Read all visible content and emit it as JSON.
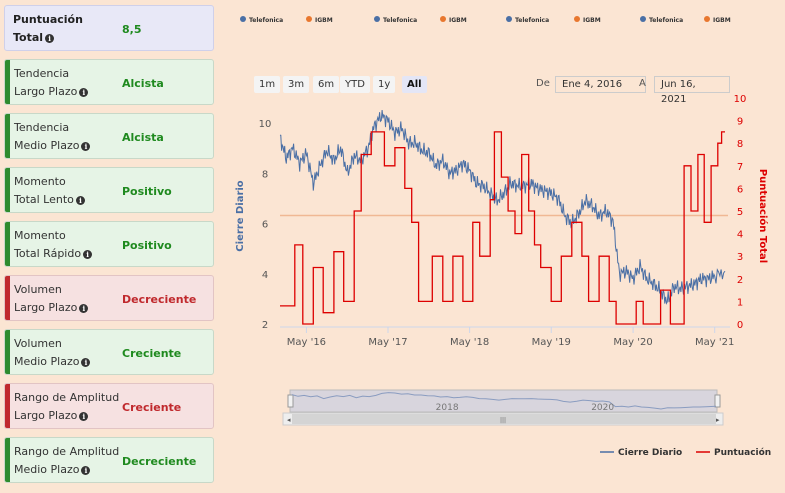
{
  "cards": [
    {
      "line1": "Puntuación",
      "line2": "Total",
      "value": "8,5",
      "kind": "purple"
    },
    {
      "line1": "Tendencia",
      "line2": "Largo Plazo",
      "value": "Alcista",
      "kind": "green"
    },
    {
      "line1": "Tendencia",
      "line2": "Medio Plazo",
      "value": "Alcista",
      "kind": "green"
    },
    {
      "line1": "Momento",
      "line2": "Total Lento",
      "value": "Positivo",
      "kind": "green"
    },
    {
      "line1": "Momento",
      "line2": "Total Rápido",
      "value": "Positivo",
      "kind": "green"
    },
    {
      "line1": "Volumen",
      "line2": "Largo Plazo",
      "value": "Decreciente",
      "kind": "red"
    },
    {
      "line1": "Volumen",
      "line2": "Medio Plazo",
      "value": "Creciente",
      "kind": "green"
    },
    {
      "line1": "Rango de Amplitud",
      "line2": "Largo Plazo",
      "value": "Creciente",
      "kind": "red"
    },
    {
      "line1": "Rango de Amplitud",
      "line2": "Medio Plazo",
      "value": "Decreciente",
      "kind": "green"
    }
  ],
  "top_legend": [
    {
      "name": "Telefonica",
      "color": "#4a6fa5"
    },
    {
      "name": "IGBM",
      "color": "#e8772e"
    },
    {
      "name": "Telefonica",
      "color": "#4a6fa5"
    },
    {
      "name": "IGBM",
      "color": "#e8772e"
    },
    {
      "name": "Telefonica",
      "color": "#4a6fa5"
    },
    {
      "name": "IGBM",
      "color": "#e8772e"
    },
    {
      "name": "Telefonica",
      "color": "#4a6fa5"
    },
    {
      "name": "IGBM",
      "color": "#e8772e"
    }
  ],
  "range_selector": {
    "buttons": [
      "1m",
      "3m",
      "6m",
      "YTD",
      "1y",
      "All"
    ],
    "active": "All",
    "from_label": "De",
    "from_date": "Ene 4, 2016",
    "to_label": "A",
    "to_date": "Jun 16, 2021"
  },
  "navigator": {
    "labels": [
      "2018",
      "2020"
    ]
  },
  "chart_data": {
    "type": "line",
    "x_range": [
      "2016-01-04",
      "2021-06-16"
    ],
    "x_ticks": [
      "May '16",
      "May '17",
      "May '18",
      "May '19",
      "May '20",
      "May '21"
    ],
    "y_left": {
      "label": "Cierre Diario",
      "range": [
        2,
        10
      ],
      "ticks": [
        2,
        4,
        6,
        8,
        10
      ],
      "color": "#4a6fa5"
    },
    "y_right": {
      "label": "Puntuación Total",
      "range": [
        0,
        10
      ],
      "ticks": [
        0,
        1,
        2,
        3,
        4,
        5,
        6,
        7,
        8,
        9,
        10
      ],
      "color": "#dd0000"
    },
    "reference_line": {
      "axis": "right",
      "value": 4.8,
      "color": "#f0b894"
    },
    "legend": {
      "position": "bottom-right"
    },
    "series": [
      {
        "name": "Cierre Diario",
        "axis": "left",
        "color": "#4a6fa5",
        "points": [
          [
            "2016-01-04",
            9.4
          ],
          [
            "2016-02-01",
            8.6
          ],
          [
            "2016-03-01",
            9.0
          ],
          [
            "2016-04-01",
            8.4
          ],
          [
            "2016-05-01",
            8.8
          ],
          [
            "2016-06-01",
            7.6
          ],
          [
            "2016-07-01",
            8.3
          ],
          [
            "2016-08-01",
            8.9
          ],
          [
            "2016-09-01",
            8.5
          ],
          [
            "2016-10-01",
            9.0
          ],
          [
            "2016-11-01",
            8.0
          ],
          [
            "2016-12-01",
            8.7
          ],
          [
            "2017-01-01",
            8.5
          ],
          [
            "2017-02-01",
            9.0
          ],
          [
            "2017-03-01",
            9.9
          ],
          [
            "2017-04-01",
            10.3
          ],
          [
            "2017-05-01",
            10.1
          ],
          [
            "2017-06-01",
            9.6
          ],
          [
            "2017-07-01",
            9.8
          ],
          [
            "2017-08-01",
            9.2
          ],
          [
            "2017-09-01",
            9.2
          ],
          [
            "2017-10-01",
            8.9
          ],
          [
            "2017-11-01",
            8.8
          ],
          [
            "2017-12-01",
            8.3
          ],
          [
            "2018-01-01",
            8.5
          ],
          [
            "2018-02-01",
            8.0
          ],
          [
            "2018-03-01",
            8.1
          ],
          [
            "2018-04-01",
            8.4
          ],
          [
            "2018-05-01",
            8.1
          ],
          [
            "2018-06-01",
            7.6
          ],
          [
            "2018-07-01",
            7.5
          ],
          [
            "2018-08-01",
            7.2
          ],
          [
            "2018-09-01",
            6.9
          ],
          [
            "2018-10-01",
            7.2
          ],
          [
            "2018-11-01",
            7.6
          ],
          [
            "2018-12-01",
            7.5
          ],
          [
            "2019-01-01",
            7.5
          ],
          [
            "2019-02-01",
            7.6
          ],
          [
            "2019-03-01",
            7.4
          ],
          [
            "2019-04-01",
            7.3
          ],
          [
            "2019-05-01",
            7.2
          ],
          [
            "2019-06-01",
            7.0
          ],
          [
            "2019-07-01",
            6.3
          ],
          [
            "2019-08-01",
            6.0
          ],
          [
            "2019-09-01",
            6.4
          ],
          [
            "2019-10-01",
            6.9
          ],
          [
            "2019-11-01",
            6.7
          ],
          [
            "2019-12-01",
            6.3
          ],
          [
            "2020-01-01",
            6.5
          ],
          [
            "2020-02-01",
            6.1
          ],
          [
            "2020-03-01",
            4.0
          ],
          [
            "2020-04-01",
            4.1
          ],
          [
            "2020-05-01",
            3.8
          ],
          [
            "2020-06-01",
            4.3
          ],
          [
            "2020-07-01",
            3.8
          ],
          [
            "2020-08-01",
            3.6
          ],
          [
            "2020-09-01",
            3.3
          ],
          [
            "2020-10-01",
            2.9
          ],
          [
            "2020-11-01",
            3.5
          ],
          [
            "2020-12-01",
            3.4
          ],
          [
            "2021-01-01",
            3.5
          ],
          [
            "2021-02-01",
            3.6
          ],
          [
            "2021-03-01",
            3.8
          ],
          [
            "2021-04-01",
            3.8
          ],
          [
            "2021-05-01",
            3.9
          ],
          [
            "2021-06-16",
            4.1
          ]
        ]
      },
      {
        "name": "Puntuación",
        "axis": "right",
        "color": "#dd0000",
        "points": [
          [
            "2016-01-04",
            0.8
          ],
          [
            "2016-03-10",
            0.8
          ],
          [
            "2016-03-10",
            3.5
          ],
          [
            "2016-04-15",
            3.5
          ],
          [
            "2016-04-15",
            0.0
          ],
          [
            "2016-06-01",
            0.0
          ],
          [
            "2016-06-01",
            2.5
          ],
          [
            "2016-07-15",
            2.5
          ],
          [
            "2016-07-15",
            0.5
          ],
          [
            "2016-09-01",
            0.5
          ],
          [
            "2016-09-01",
            3.2
          ],
          [
            "2016-10-15",
            3.2
          ],
          [
            "2016-10-15",
            1.0
          ],
          [
            "2016-12-01",
            1.0
          ],
          [
            "2016-12-01",
            5.0
          ],
          [
            "2017-01-01",
            5.0
          ],
          [
            "2017-01-01",
            7.5
          ],
          [
            "2017-02-15",
            7.5
          ],
          [
            "2017-02-15",
            8.5
          ],
          [
            "2017-04-15",
            8.5
          ],
          [
            "2017-04-15",
            7.0
          ],
          [
            "2017-06-01",
            7.0
          ],
          [
            "2017-06-01",
            7.8
          ],
          [
            "2017-07-15",
            7.8
          ],
          [
            "2017-07-15",
            6.0
          ],
          [
            "2017-08-15",
            6.0
          ],
          [
            "2017-08-15",
            4.5
          ],
          [
            "2017-09-15",
            4.5
          ],
          [
            "2017-09-15",
            1.0
          ],
          [
            "2017-11-15",
            1.0
          ],
          [
            "2017-11-15",
            3.0
          ],
          [
            "2018-01-01",
            3.0
          ],
          [
            "2018-01-01",
            1.0
          ],
          [
            "2018-02-15",
            1.0
          ],
          [
            "2018-02-15",
            3.0
          ],
          [
            "2018-04-01",
            3.0
          ],
          [
            "2018-04-01",
            1.0
          ],
          [
            "2018-05-15",
            1.0
          ],
          [
            "2018-05-15",
            4.5
          ],
          [
            "2018-06-15",
            4.5
          ],
          [
            "2018-06-15",
            3.0
          ],
          [
            "2018-08-01",
            3.0
          ],
          [
            "2018-08-01",
            5.5
          ],
          [
            "2018-08-20",
            5.5
          ],
          [
            "2018-08-20",
            8.5
          ],
          [
            "2018-09-20",
            8.5
          ],
          [
            "2018-09-20",
            6.5
          ],
          [
            "2018-10-20",
            6.5
          ],
          [
            "2018-10-20",
            5.0
          ],
          [
            "2018-11-20",
            5.0
          ],
          [
            "2018-11-20",
            4.0
          ],
          [
            "2018-12-20",
            4.0
          ],
          [
            "2018-12-20",
            7.5
          ],
          [
            "2019-01-20",
            7.5
          ],
          [
            "2019-01-20",
            5.0
          ],
          [
            "2019-02-15",
            5.0
          ],
          [
            "2019-02-15",
            3.5
          ],
          [
            "2019-03-15",
            3.5
          ],
          [
            "2019-03-15",
            2.5
          ],
          [
            "2019-05-01",
            2.5
          ],
          [
            "2019-05-01",
            1.0
          ],
          [
            "2019-06-15",
            1.0
          ],
          [
            "2019-06-15",
            3.0
          ],
          [
            "2019-08-01",
            3.0
          ],
          [
            "2019-08-01",
            4.5
          ],
          [
            "2019-09-15",
            4.5
          ],
          [
            "2019-09-15",
            3.0
          ],
          [
            "2019-10-15",
            3.0
          ],
          [
            "2019-10-15",
            1.0
          ],
          [
            "2019-12-01",
            1.0
          ],
          [
            "2019-12-01",
            3.0
          ],
          [
            "2020-01-15",
            3.0
          ],
          [
            "2020-01-15",
            1.0
          ],
          [
            "2020-02-15",
            1.0
          ],
          [
            "2020-02-15",
            0.0
          ],
          [
            "2020-05-15",
            0.0
          ],
          [
            "2020-05-15",
            1.0
          ],
          [
            "2020-06-15",
            1.0
          ],
          [
            "2020-06-15",
            0.0
          ],
          [
            "2020-09-01",
            0.0
          ],
          [
            "2020-09-01",
            1.5
          ],
          [
            "2020-10-15",
            1.5
          ],
          [
            "2020-10-15",
            0.0
          ],
          [
            "2020-12-15",
            0.0
          ],
          [
            "2020-12-15",
            7.0
          ],
          [
            "2021-01-15",
            7.0
          ],
          [
            "2021-01-15",
            5.0
          ],
          [
            "2021-02-15",
            5.0
          ],
          [
            "2021-02-15",
            7.5
          ],
          [
            "2021-03-15",
            7.5
          ],
          [
            "2021-03-15",
            4.5
          ],
          [
            "2021-04-15",
            4.5
          ],
          [
            "2021-04-15",
            7.0
          ],
          [
            "2021-05-15",
            7.0
          ],
          [
            "2021-05-15",
            8.0
          ],
          [
            "2021-06-01",
            8.0
          ],
          [
            "2021-06-01",
            8.5
          ],
          [
            "2021-06-16",
            8.5
          ]
        ]
      }
    ]
  }
}
